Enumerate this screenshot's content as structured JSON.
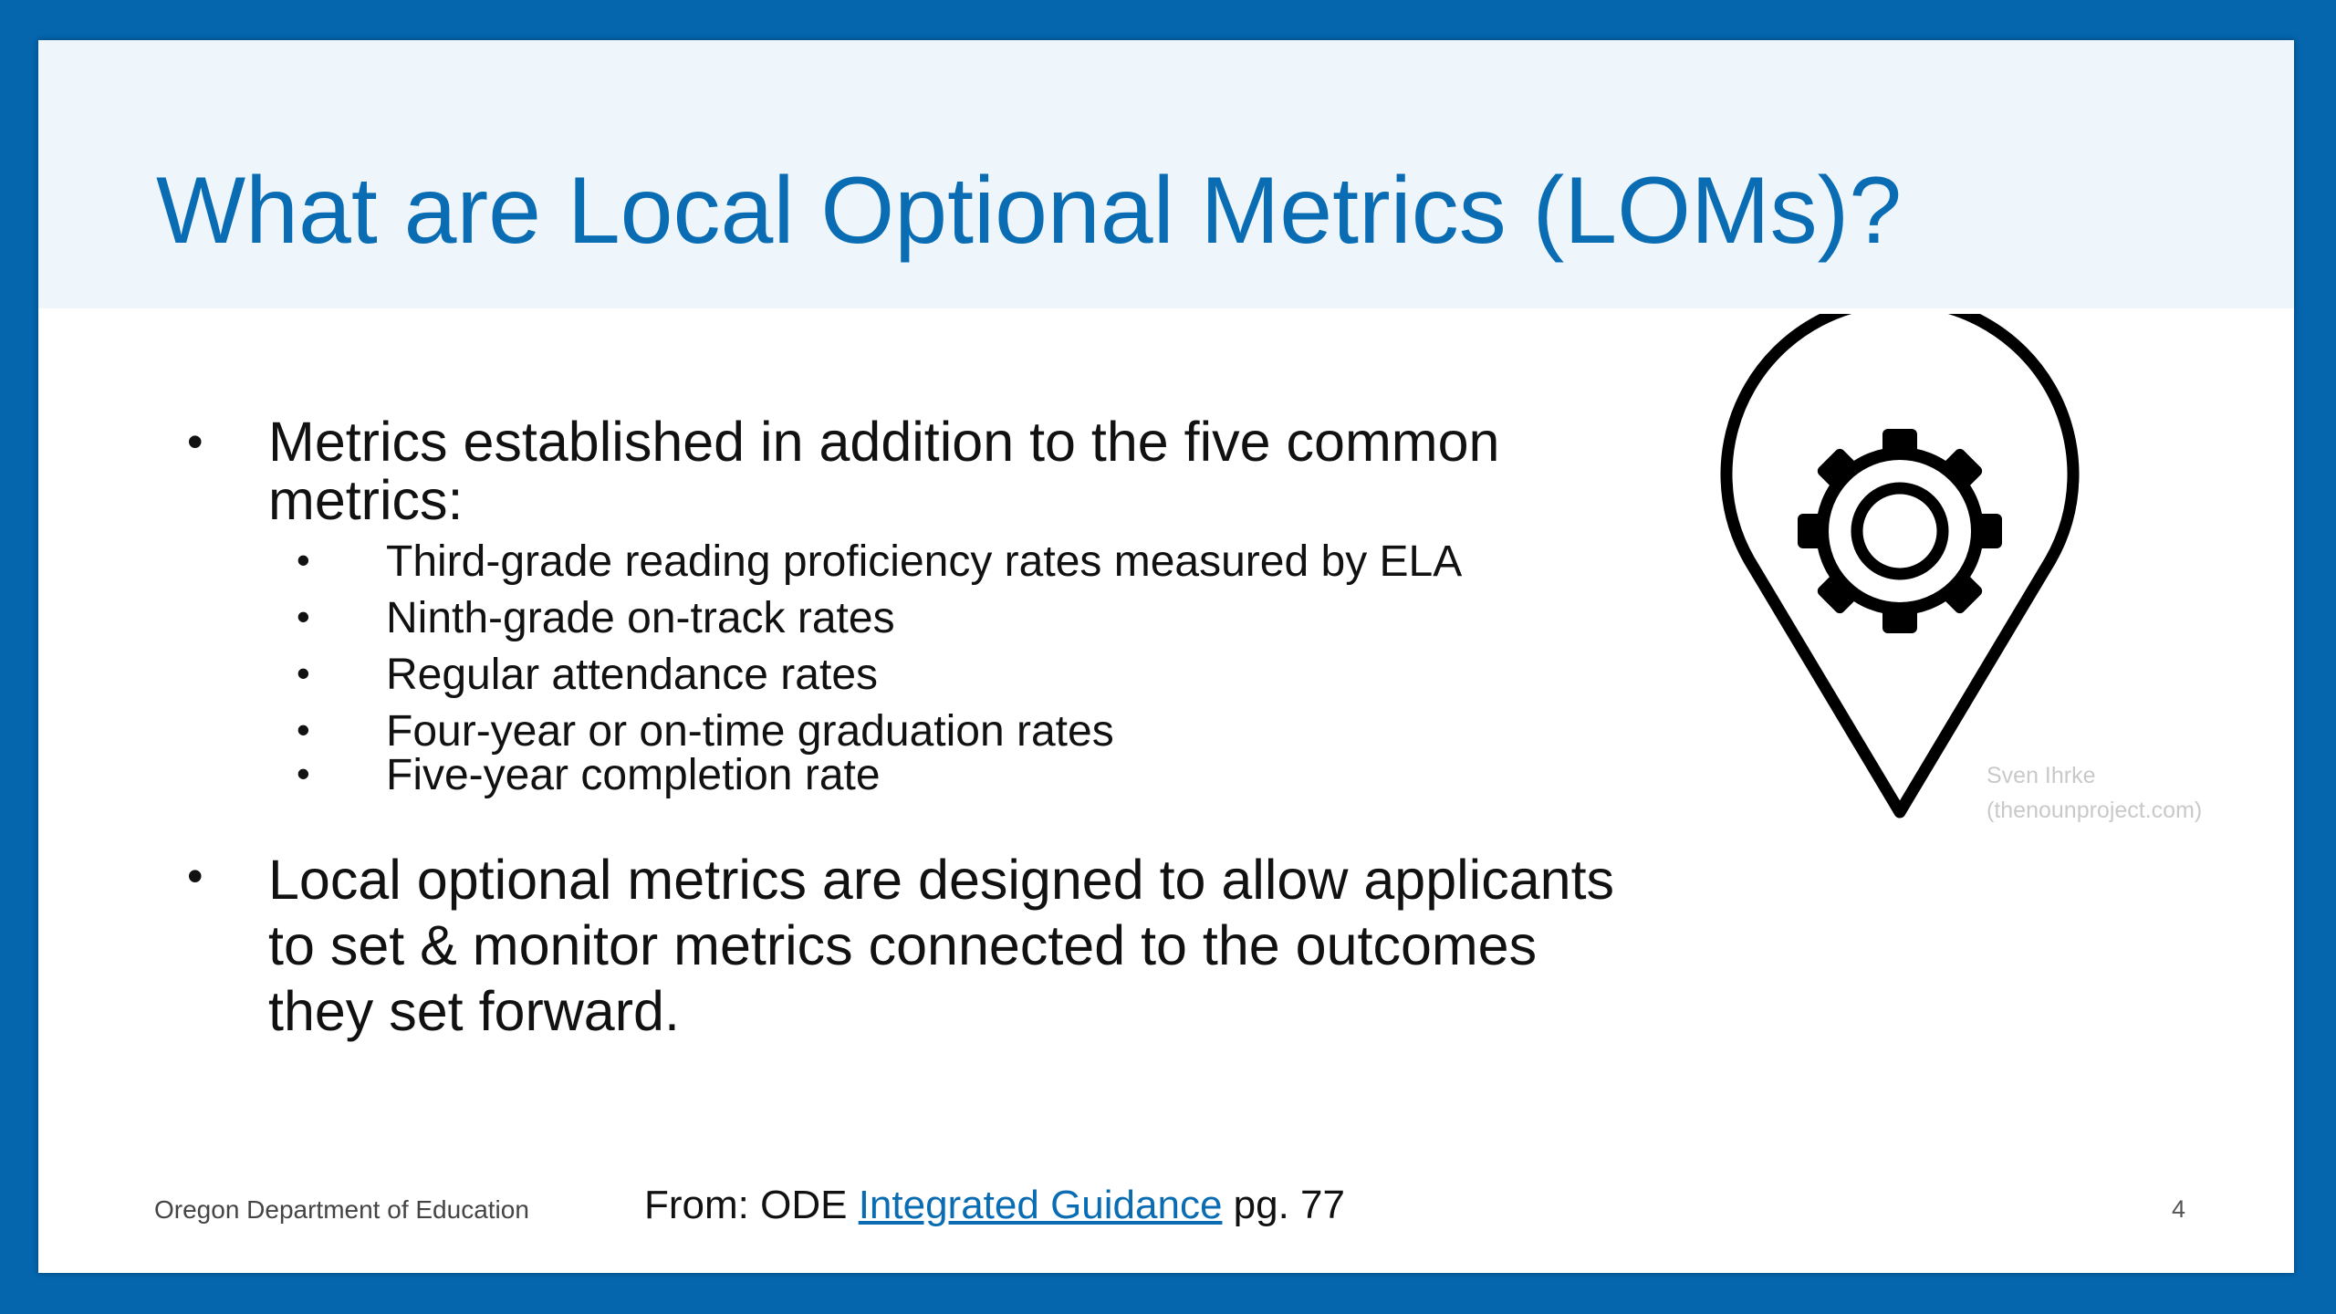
{
  "colors": {
    "frame": "#0565ad",
    "title": "#0a6db3",
    "title_band": "#eef6fc",
    "link": "#0a6db3",
    "text": "#111111"
  },
  "slide": {
    "title": "What are Local Optional Metrics (LOMs)?",
    "bullets": [
      {
        "text": "Metrics established in addition to the five common metrics:",
        "sub_items": [
          "Third-grade reading proficiency rates measured by ELA",
          "Ninth-grade on-track rates",
          "Regular attendance rates",
          "Four-year or on-time graduation rates",
          "Five-year completion rate"
        ]
      },
      {
        "text": "Local optional metrics are designed to allow applicants to set & monitor metrics connected to the outcomes they set forward."
      }
    ],
    "bullet_glyph": "•",
    "icon": "map-pin-gear-icon",
    "attribution": {
      "author": "Sven Ihrke",
      "source": "(thenounproject.com)"
    },
    "footer": {
      "organization": "Oregon Department of Education",
      "source_prefix": "From: ODE",
      "source_link": "Integrated Guidance",
      "source_suffix": "pg. 77",
      "page_number": "4"
    }
  }
}
